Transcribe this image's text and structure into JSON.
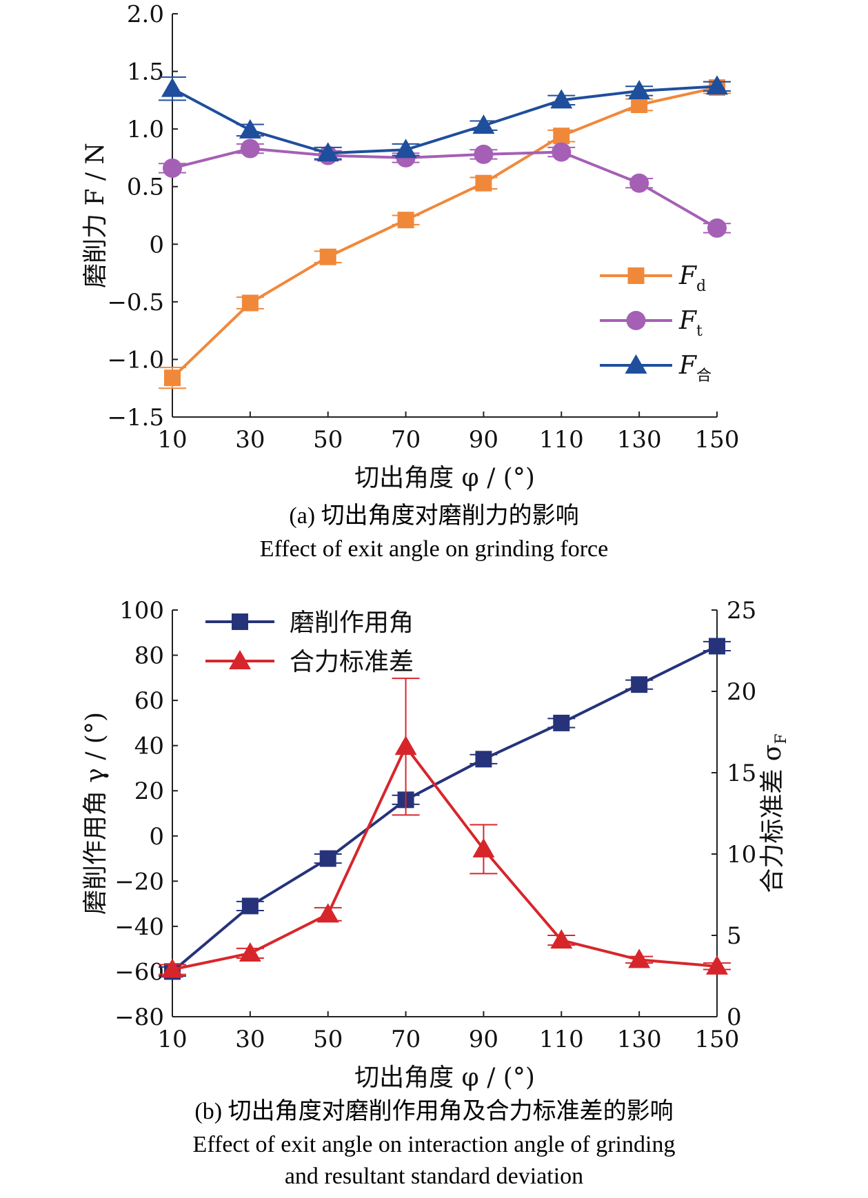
{
  "chart_data": [
    {
      "type": "line",
      "x": [
        10,
        30,
        50,
        70,
        90,
        110,
        130,
        150
      ],
      "xlim": [
        10,
        150
      ],
      "ylim": [
        -1.5,
        2.0
      ],
      "xticks": [
        "10",
        "30",
        "50",
        "70",
        "90",
        "110",
        "130",
        "150"
      ],
      "yticks": [
        "2.0",
        "1.5",
        "1.0",
        "0.5",
        "0",
        "−0.5",
        "−1.0",
        "−1.5"
      ],
      "yticks_values": [
        2.0,
        1.5,
        1.0,
        0.5,
        0,
        -0.5,
        -1.0,
        -1.5
      ],
      "xlabel": "切出角度 φ / (°)",
      "ylabel": "磨削力 F / N",
      "legend_position": "right",
      "grid": false,
      "series": [
        {
          "name": "F",
          "subscript": "d",
          "color": "#F0883A",
          "marker": "square",
          "values": [
            -1.16,
            -0.51,
            -0.11,
            0.21,
            0.53,
            0.94,
            1.21,
            1.36
          ],
          "errors": [
            0.09,
            0.05,
            0.05,
            0.04,
            0.05,
            0.05,
            0.05,
            0.05
          ]
        },
        {
          "name": "F",
          "subscript": "t",
          "color": "#A55FB5",
          "marker": "circle",
          "values": [
            0.66,
            0.83,
            0.77,
            0.75,
            0.78,
            0.8,
            0.53,
            0.14
          ],
          "errors": [
            0.04,
            0.04,
            0.04,
            0.04,
            0.04,
            0.04,
            0.04,
            0.04
          ]
        },
        {
          "name": "F",
          "subscript": "合",
          "color": "#1F4E9C",
          "marker": "triangle",
          "values": [
            1.35,
            0.99,
            0.79,
            0.82,
            1.03,
            1.25,
            1.33,
            1.37
          ],
          "errors": [
            0.1,
            0.05,
            0.05,
            0.05,
            0.04,
            0.04,
            0.04,
            0.04
          ]
        }
      ]
    },
    {
      "type": "line",
      "x": [
        10,
        30,
        50,
        70,
        90,
        110,
        130,
        150
      ],
      "xlim": [
        10,
        150
      ],
      "ylim": [
        -80,
        100
      ],
      "y2lim": [
        0,
        25
      ],
      "xticks": [
        "10",
        "30",
        "50",
        "70",
        "90",
        "110",
        "130",
        "150"
      ],
      "yticks": [
        "100",
        "80",
        "60",
        "40",
        "20",
        "0",
        "−20",
        "−40",
        "−60",
        "−80"
      ],
      "yticks_values": [
        100,
        80,
        60,
        40,
        20,
        0,
        -20,
        -40,
        -60,
        -80
      ],
      "y2ticks": [
        "25",
        "20",
        "15",
        "10",
        "5",
        "0"
      ],
      "y2ticks_values": [
        25,
        20,
        15,
        10,
        5,
        0
      ],
      "xlabel": "切出角度 φ / (°)",
      "ylabel": "磨削作用角 γ / (°)",
      "y2label": "合力标准差 σ",
      "y2label_subscript": "F",
      "legend_position": "top-left",
      "grid": false,
      "series": [
        {
          "name": "磨削作用角",
          "axis": "left",
          "color": "#26337A",
          "marker": "square",
          "values": [
            -60,
            -31,
            -10,
            16,
            34,
            50,
            67,
            84
          ],
          "errors": [
            2,
            2,
            2,
            2,
            2,
            2,
            2,
            2
          ]
        },
        {
          "name": "合力标准差",
          "axis": "right",
          "color": "#D7262B",
          "marker": "triangle",
          "values": [
            2.9,
            3.9,
            6.3,
            16.6,
            10.3,
            4.7,
            3.5,
            3.1
          ],
          "errors": [
            0.3,
            0.3,
            0.4,
            4.2,
            1.5,
            0.3,
            0.2,
            0.2
          ]
        }
      ]
    }
  ],
  "captions": {
    "a_cn": "(a) 切出角度对磨削力的影响",
    "a_en": "Effect of exit angle on grinding force",
    "b_cn": "(b) 切出角度对磨削作用角及合力标准差的影响",
    "b_en1": "Effect of exit angle on interaction angle of grinding",
    "b_en2": "and resultant standard deviation"
  }
}
